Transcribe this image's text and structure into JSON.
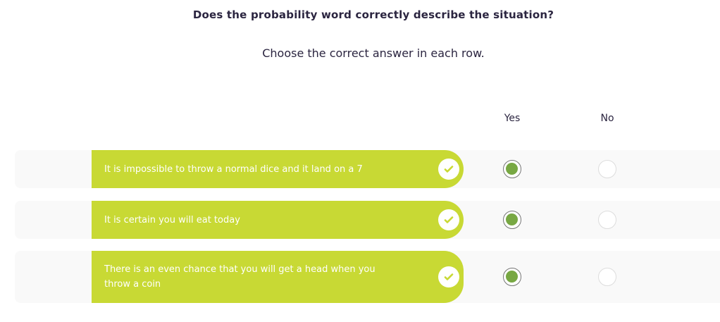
{
  "title": "Does the probability word correctly describe the situation?",
  "subtitle": "Choose the correct answer in each row.",
  "columns": {
    "yes": "Yes",
    "no": "No"
  },
  "colors": {
    "pill": "#c8d934",
    "selected": "#78a843"
  },
  "rows": [
    {
      "text": "It is impossible to throw a normal dice and it land on a 7",
      "selected": "yes",
      "correct": true
    },
    {
      "text": "It is certain you will eat today",
      "selected": "yes",
      "correct": true
    },
    {
      "text": "There is an even chance that you will get a head when you throw a coin",
      "selected": "yes",
      "correct": true
    }
  ]
}
